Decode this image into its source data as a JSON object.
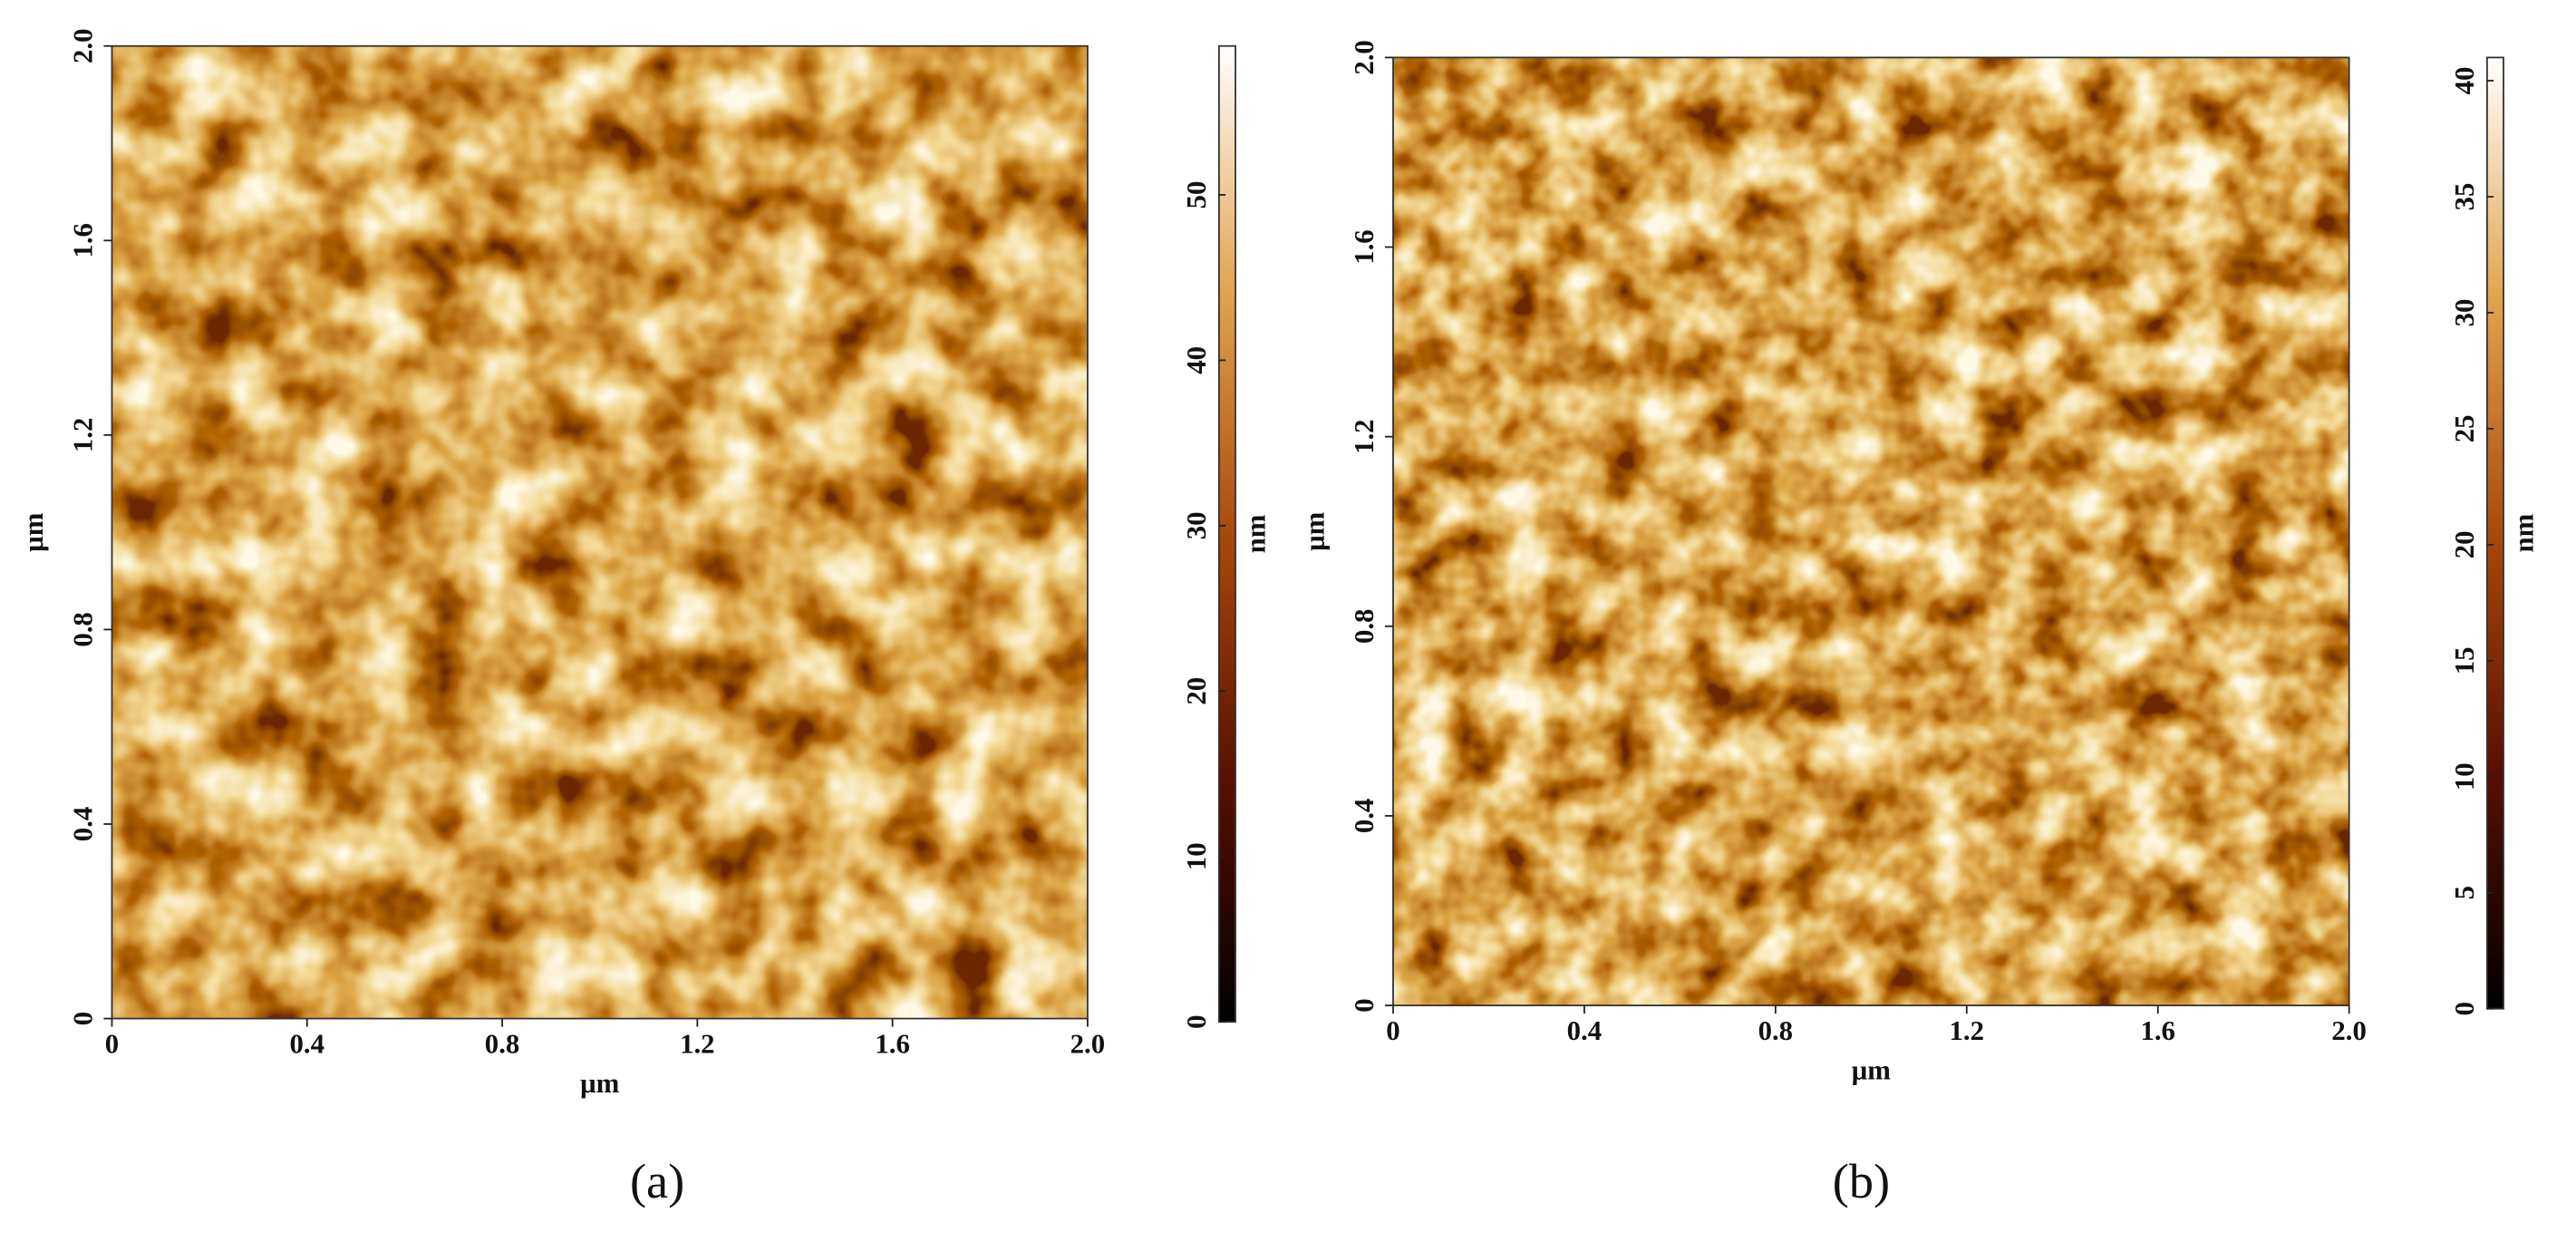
{
  "chart_data": [
    {
      "type": "heatmap",
      "xlabel": "μm",
      "ylabel": "μm",
      "xlim": [
        0,
        2
      ],
      "xticks": [
        0,
        0.4,
        0.8,
        1.2,
        1.6,
        {
          "value": 2,
          "label": "2.0"
        }
      ],
      "ylim": [
        0,
        2
      ],
      "yticks": [
        0,
        0.4,
        0.8,
        1.2,
        1.6,
        {
          "value": 2,
          "label": "2.0"
        }
      ],
      "colorbar_label": "nm",
      "clim": [
        0,
        59
      ],
      "cticks": [
        0,
        10,
        20,
        30,
        40,
        50
      ],
      "caption": "(a)"
    },
    {
      "type": "heatmap",
      "xlabel": "μm",
      "ylabel": "μm",
      "xlim": [
        0,
        2
      ],
      "xticks": [
        0,
        0.4,
        0.8,
        1.2,
        1.6,
        {
          "value": 2,
          "label": "2.0"
        }
      ],
      "ylim": [
        0,
        2
      ],
      "yticks": [
        0,
        0.4,
        0.8,
        1.2,
        1.6,
        {
          "value": 2,
          "label": "2.0"
        }
      ],
      "colorbar_label": "nm",
      "clim": [
        0,
        41
      ],
      "cticks": [
        0,
        5,
        10,
        15,
        20,
        25,
        30,
        35,
        40
      ],
      "caption": "(b)"
    }
  ]
}
